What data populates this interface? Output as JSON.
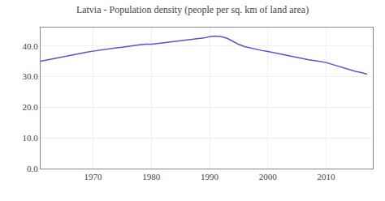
{
  "chart_data": {
    "type": "line",
    "title": "Latvia - Population density (people per sq. km of land area)",
    "x": [
      1961,
      1962,
      1963,
      1964,
      1965,
      1966,
      1967,
      1968,
      1969,
      1970,
      1971,
      1972,
      1973,
      1974,
      1975,
      1976,
      1977,
      1978,
      1979,
      1980,
      1981,
      1982,
      1983,
      1984,
      1985,
      1986,
      1987,
      1988,
      1989,
      1990,
      1991,
      1992,
      1993,
      1994,
      1995,
      1996,
      1997,
      1998,
      1999,
      2000,
      2001,
      2002,
      2003,
      2004,
      2005,
      2006,
      2007,
      2008,
      2009,
      2010,
      2011,
      2012,
      2013,
      2014,
      2015,
      2016,
      2017
    ],
    "values": [
      35.0,
      35.4,
      35.8,
      36.2,
      36.6,
      37.0,
      37.3,
      37.7,
      38.0,
      38.3,
      38.6,
      38.9,
      39.1,
      39.4,
      39.6,
      39.9,
      40.1,
      40.4,
      40.6,
      40.6,
      40.8,
      41.0,
      41.2,
      41.4,
      41.6,
      41.8,
      42.0,
      42.3,
      42.6,
      43.0,
      43.2,
      43.0,
      42.5,
      41.5,
      40.5,
      39.8,
      39.3,
      38.8,
      38.5,
      38.2,
      37.8,
      37.4,
      37.0,
      36.6,
      36.2,
      35.8,
      35.5,
      35.2,
      35.0,
      34.6,
      34.0,
      33.4,
      32.8,
      32.2,
      31.7,
      31.3,
      30.8
    ],
    "color": "#5555cc",
    "xlim": [
      1961,
      2018
    ],
    "xticks": [
      1970,
      1980,
      1990,
      2000,
      2010
    ],
    "ylim": [
      0,
      46
    ],
    "yticks": [
      {
        "value": 0,
        "label": "0.0"
      },
      {
        "value": 10,
        "label": "10.0"
      },
      {
        "value": 20,
        "label": "20.0"
      },
      {
        "value": 30,
        "label": "30.0"
      },
      {
        "value": 40,
        "label": "40.0"
      }
    ],
    "grid": true
  }
}
